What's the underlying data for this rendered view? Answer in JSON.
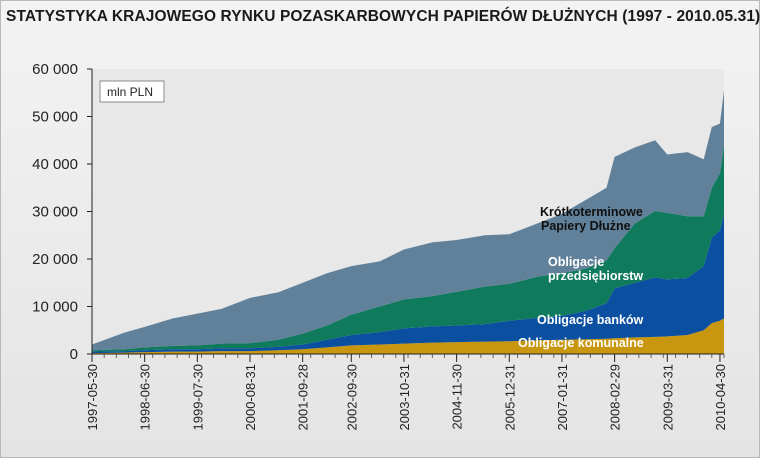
{
  "title": "STATYSTYKA KRAJOWEGO RYNKU POZASKARBOWYCH PAPIERÓW DŁUŻNYCH (1997 - 2010.05.31)",
  "unit_box": "mln PLN",
  "colors": {
    "komunalne": "#c8960f",
    "bankow": "#0a4fa0",
    "przedsiebiorstw": "#107a5c",
    "krotkoterminowe": "#61819a",
    "background": "#e8e8e8"
  },
  "chart_data": {
    "type": "area",
    "stacked": true,
    "title": "STATYSTYKA KRAJOWEGO RYNKU POZASKARBOWYCH PAPIERÓW DŁUŻNYCH (1997 - 2010.05.31)",
    "xlabel": "",
    "ylabel": "",
    "ylim": [
      0,
      60000
    ],
    "yticks": [
      0,
      10000,
      20000,
      30000,
      40000,
      50000,
      60000
    ],
    "ytick_labels": [
      "0",
      "10 000",
      "20 000",
      "30 000",
      "40 000",
      "50 000",
      "60 000"
    ],
    "xtick_labels": [
      "1997-05-30",
      "1998-06-30",
      "1999-07-30",
      "2000-08-31",
      "2001-09-28",
      "2002-09-30",
      "2003-10-31",
      "2004-11-30",
      "2005-12-31",
      "2007-01-31",
      "2008-02-29",
      "2009-03-31",
      "2010-04-30"
    ],
    "grid": false,
    "x": [
      "1997-05",
      "1998-01",
      "1998-06",
      "1999-01",
      "1999-07",
      "2000-01",
      "2000-08",
      "2001-03",
      "2001-09",
      "2002-03",
      "2002-09",
      "2003-04",
      "2003-10",
      "2004-05",
      "2004-11",
      "2005-06",
      "2005-12",
      "2006-07",
      "2007-01",
      "2007-07",
      "2007-12",
      "2008-02",
      "2008-07",
      "2008-12",
      "2009-03",
      "2009-08",
      "2009-12",
      "2010-02",
      "2010-04",
      "2010-05"
    ],
    "series": [
      {
        "name": "Obligacje komunalne",
        "values": [
          200,
          300,
          400,
          500,
          500,
          600,
          600,
          800,
          1000,
          1400,
          1800,
          2000,
          2200,
          2400,
          2500,
          2600,
          2700,
          2900,
          3000,
          3100,
          3200,
          3300,
          3500,
          3600,
          3700,
          4000,
          5000,
          6500,
          7000,
          7500
        ]
      },
      {
        "name": "Obligacje banków",
        "values": [
          300,
          300,
          400,
          500,
          500,
          600,
          600,
          700,
          1000,
          1600,
          2200,
          2600,
          3200,
          3400,
          3500,
          3700,
          4300,
          4700,
          5000,
          6000,
          7500,
          10500,
          11500,
          12500,
          12000,
          12000,
          13500,
          18000,
          19000,
          22000
        ]
      },
      {
        "name": "Obligacje przedsiębiorstw",
        "values": [
          300,
          400,
          600,
          700,
          800,
          1000,
          1100,
          1500,
          2300,
          3000,
          4300,
          5400,
          6100,
          6400,
          7100,
          7900,
          7800,
          8700,
          9000,
          8900,
          9000,
          8500,
          12500,
          14000,
          14000,
          13000,
          10500,
          10500,
          12000,
          14500
        ]
      },
      {
        "name": "Krótkoterminowe Papiery Dłużne",
        "values": [
          1200,
          3500,
          4300,
          5800,
          6700,
          7300,
          9500,
          10000,
          10700,
          11000,
          10200,
          9500,
          10500,
          11300,
          10900,
          10800,
          10400,
          11200,
          12500,
          14500,
          15300,
          19200,
          16000,
          14900,
          12300,
          13500,
          12000,
          12800,
          10500,
          11500
        ]
      }
    ],
    "labels": {
      "komunalne": "Obligacje komunalne",
      "bankow": "Obligacje banków",
      "przedsiebiorstw_1": "Obligacje",
      "przedsiebiorstw_2": "przedsiębiorstw",
      "krotkoterminowe_1": "Krótkoterminowe",
      "krotkoterminowe_2": "Papiery Dłużne"
    }
  }
}
